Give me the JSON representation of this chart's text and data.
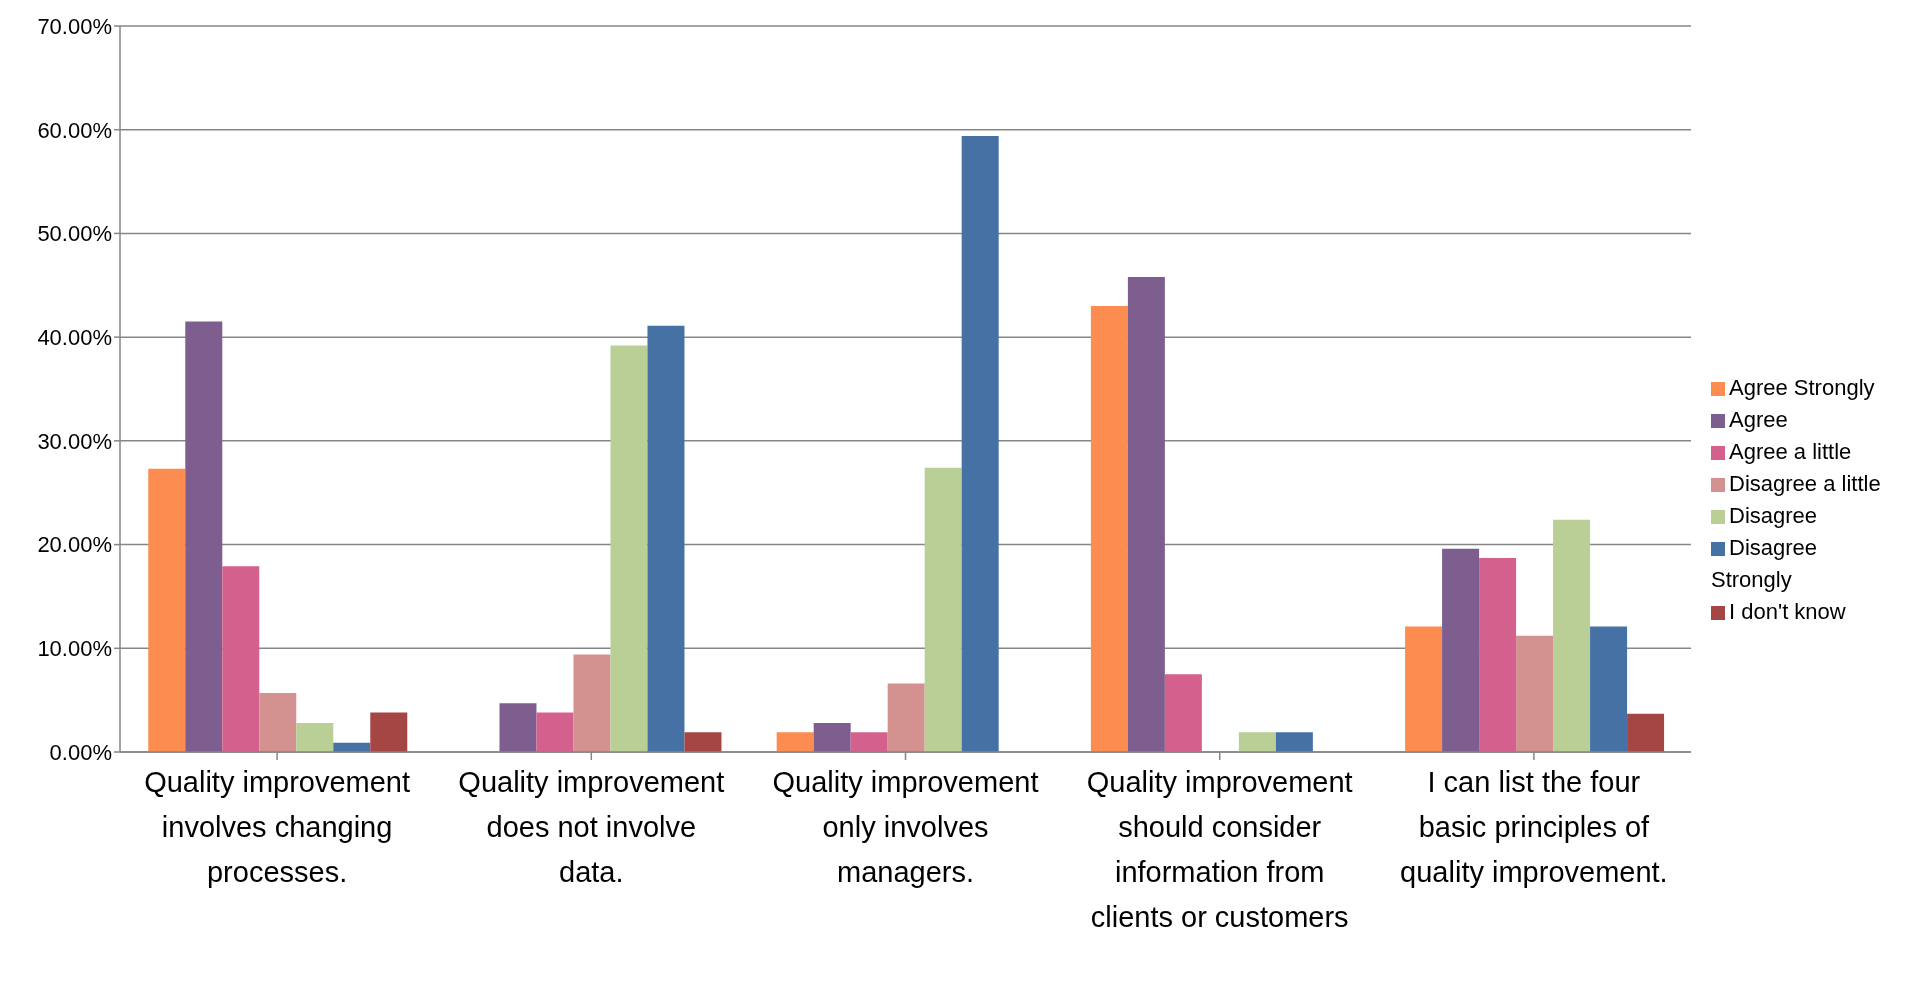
{
  "chart_data": {
    "type": "bar",
    "categories": [
      "Quality improvement involves changing processes.",
      "Quality improvement does not involve data.",
      "Quality improvement only involves managers.",
      "Quality improvement should consider information from clients or customers",
      "I can list the four basic principles of quality improvement."
    ],
    "series": [
      {
        "name": "Agree Strongly",
        "color": "#fd8c50",
        "values": [
          27.3,
          0,
          1.9,
          43.0,
          12.1
        ]
      },
      {
        "name": "Agree",
        "color": "#7d5e8e",
        "values": [
          41.5,
          4.7,
          2.8,
          45.8,
          19.6
        ]
      },
      {
        "name": "Agree a little",
        "color": "#d4608e",
        "values": [
          17.9,
          3.8,
          1.9,
          7.5,
          18.7
        ]
      },
      {
        "name": "Disagree a little",
        "color": "#d39190",
        "values": [
          5.7,
          9.4,
          6.6,
          0,
          11.2
        ]
      },
      {
        "name": "Disagree",
        "color": "#b9cf96",
        "values": [
          2.8,
          39.2,
          27.4,
          1.9,
          22.4
        ]
      },
      {
        "name": "Disagree Strongly",
        "color": "#4571a5",
        "values": [
          0.9,
          41.1,
          59.4,
          1.9,
          12.1
        ]
      },
      {
        "name": "I don't know",
        "color": "#a64644",
        "values": [
          3.8,
          1.9,
          0,
          0,
          3.7
        ]
      }
    ],
    "ylim": [
      0,
      70
    ],
    "yticks": [
      {
        "value": 0,
        "label": "0.00%"
      },
      {
        "value": 10,
        "label": "10.00%"
      },
      {
        "value": 20,
        "label": "20.00%"
      },
      {
        "value": 30,
        "label": "30.00%"
      },
      {
        "value": 40,
        "label": "40.00%"
      },
      {
        "value": 50,
        "label": "50.00%"
      },
      {
        "value": 60,
        "label": "60.00%"
      },
      {
        "value": 70,
        "label": "70.00%"
      }
    ],
    "grid": "y",
    "legend": "right"
  }
}
